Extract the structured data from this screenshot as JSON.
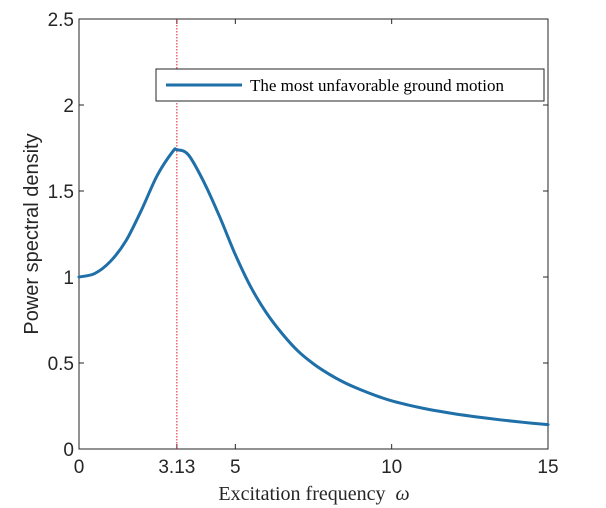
{
  "chart_data": {
    "type": "line",
    "title": "",
    "xlabel": "Excitation frequency",
    "xlabel_symbol": "ω",
    "ylabel": "Power spectral density",
    "xlim": [
      0,
      15
    ],
    "ylim": [
      0,
      2.5
    ],
    "x_ticks": [
      {
        "value": 0,
        "label": "0"
      },
      {
        "value": 3.13,
        "label": "3.13"
      },
      {
        "value": 5,
        "label": "5"
      },
      {
        "value": 10,
        "label": "10"
      },
      {
        "value": 15,
        "label": "15"
      }
    ],
    "y_ticks": [
      {
        "value": 0,
        "label": "0"
      },
      {
        "value": 0.5,
        "label": "0.5"
      },
      {
        "value": 1,
        "label": "1"
      },
      {
        "value": 1.5,
        "label": "1.5"
      },
      {
        "value": 2,
        "label": "2"
      },
      {
        "value": 2.5,
        "label": "2.5"
      }
    ],
    "grid": false,
    "legend_position": "top-right",
    "series": [
      {
        "name": "The most unfavorable ground motion",
        "color": "#1f6fa8",
        "x": [
          0,
          0.5,
          1,
          1.5,
          2,
          2.5,
          3,
          3.13,
          3.5,
          4,
          4.5,
          5,
          5.5,
          6,
          6.5,
          7,
          7.5,
          8,
          8.5,
          9,
          9.5,
          10,
          10.5,
          11,
          11.5,
          12,
          12.5,
          13,
          13.5,
          14,
          14.5,
          15
        ],
        "y": [
          1.0,
          1.02,
          1.09,
          1.21,
          1.39,
          1.59,
          1.73,
          1.74,
          1.71,
          1.55,
          1.35,
          1.13,
          0.94,
          0.79,
          0.67,
          0.57,
          0.495,
          0.435,
          0.385,
          0.345,
          0.31,
          0.28,
          0.257,
          0.237,
          0.22,
          0.205,
          0.192,
          0.18,
          0.169,
          0.159,
          0.15,
          0.142
        ]
      }
    ],
    "annotations": [
      {
        "type": "vline",
        "x": 3.13,
        "color": "#e8182d",
        "style": "dotted"
      }
    ]
  }
}
